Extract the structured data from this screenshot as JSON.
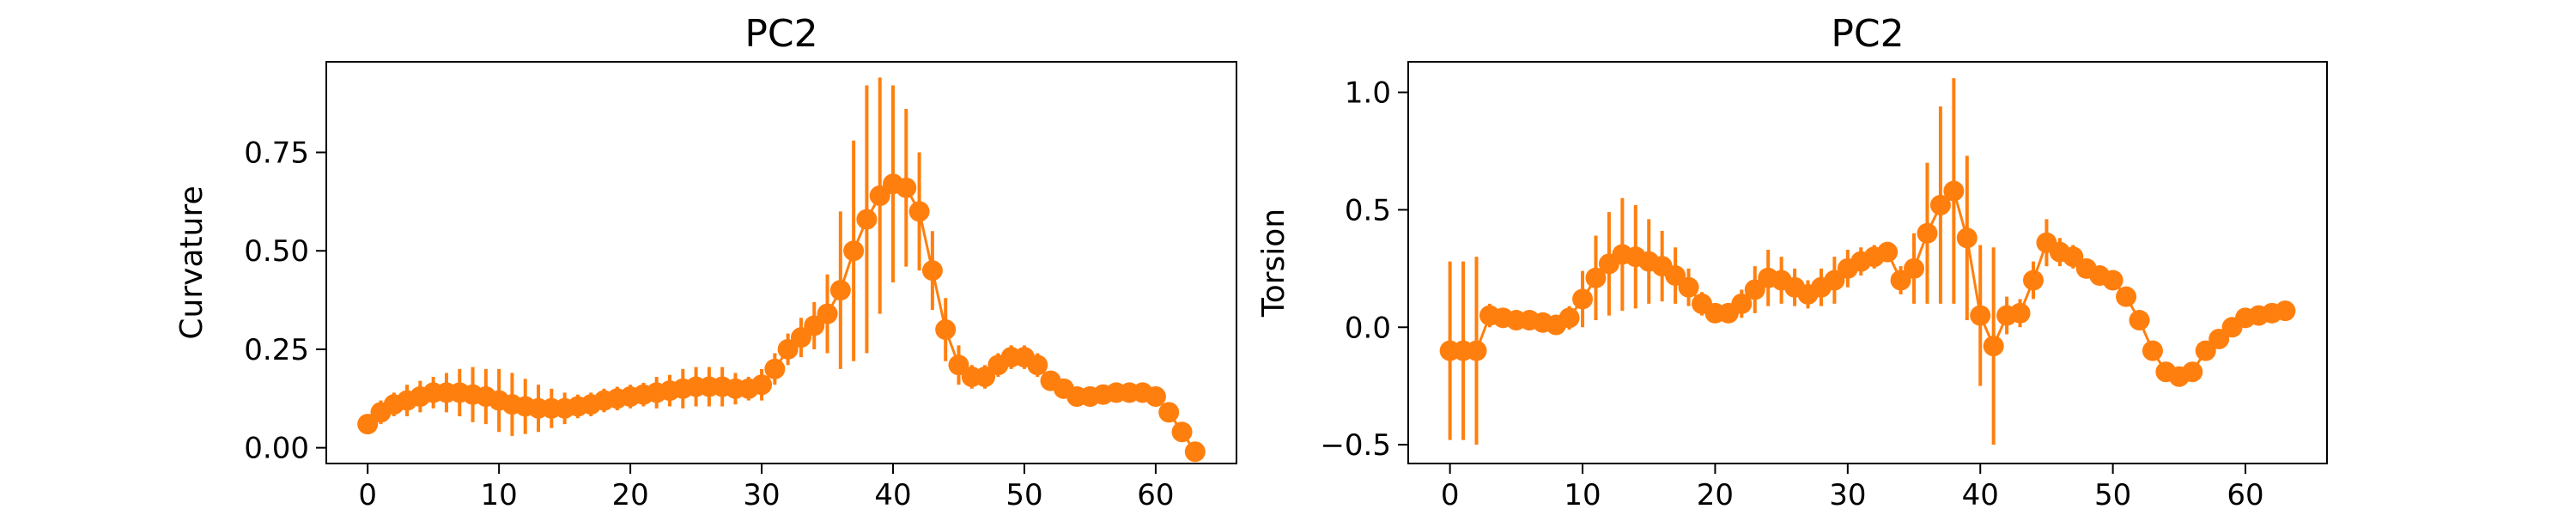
{
  "chart_data": [
    {
      "type": "scatter",
      "title": "PC2",
      "xlabel": "",
      "ylabel": "Curvature",
      "xlim": [
        -3.15,
        66.15
      ],
      "ylim": [
        -0.04,
        0.98
      ],
      "xticks": [
        0,
        10,
        20,
        30,
        40,
        50,
        60
      ],
      "xtick_labels": [
        "0",
        "10",
        "20",
        "30",
        "40",
        "50",
        "60"
      ],
      "yticks": [
        0,
        0.25,
        0.5,
        0.75
      ],
      "ytick_labels": [
        "0.00",
        "0.25",
        "0.50",
        "0.75"
      ],
      "color": "#ff7f0e",
      "grid": false,
      "series": [
        {
          "x": [
            0,
            1,
            2,
            3,
            4,
            5,
            6,
            7,
            8,
            9,
            10,
            11,
            12,
            13,
            14,
            15,
            16,
            17,
            18,
            19,
            20,
            21,
            22,
            23,
            24,
            25,
            26,
            27,
            28,
            29,
            30,
            31,
            32,
            33,
            34,
            35,
            36,
            37,
            38,
            39,
            40,
            41,
            42,
            43,
            44,
            45,
            46,
            47,
            48,
            49,
            50,
            51,
            52,
            53,
            54,
            55,
            56,
            57,
            58,
            59,
            60,
            61,
            62,
            63
          ],
          "y": [
            0.06,
            0.09,
            0.11,
            0.12,
            0.13,
            0.14,
            0.14,
            0.14,
            0.135,
            0.13,
            0.12,
            0.11,
            0.105,
            0.1,
            0.1,
            0.1,
            0.105,
            0.11,
            0.12,
            0.125,
            0.13,
            0.135,
            0.14,
            0.145,
            0.15,
            0.155,
            0.155,
            0.155,
            0.15,
            0.15,
            0.16,
            0.2,
            0.25,
            0.28,
            0.31,
            0.34,
            0.4,
            0.5,
            0.58,
            0.64,
            0.67,
            0.66,
            0.6,
            0.45,
            0.3,
            0.21,
            0.18,
            0.18,
            0.21,
            0.23,
            0.23,
            0.21,
            0.17,
            0.15,
            0.13,
            0.13,
            0.135,
            0.14,
            0.14,
            0.14,
            0.13,
            0.09,
            0.04,
            -0.01
          ],
          "yerr": [
            0.02,
            0.03,
            0.03,
            0.04,
            0.04,
            0.04,
            0.05,
            0.06,
            0.07,
            0.07,
            0.08,
            0.08,
            0.07,
            0.06,
            0.05,
            0.04,
            0.03,
            0.03,
            0.03,
            0.03,
            0.03,
            0.03,
            0.04,
            0.04,
            0.05,
            0.05,
            0.05,
            0.05,
            0.04,
            0.03,
            0.04,
            0.04,
            0.04,
            0.05,
            0.06,
            0.1,
            0.2,
            0.28,
            0.34,
            0.3,
            0.25,
            0.2,
            0.15,
            0.1,
            0.08,
            0.05,
            0.03,
            0.03,
            0.03,
            0.03,
            0.03,
            0.03,
            0.02,
            0.02,
            0.02,
            0.02,
            0.02,
            0.02,
            0.02,
            0.02,
            0.02,
            0.02,
            0.02,
            0.02
          ]
        }
      ]
    },
    {
      "type": "scatter",
      "title": "PC2",
      "xlabel": "",
      "ylabel": "Torsion",
      "xlim": [
        -3.15,
        66.15
      ],
      "ylim": [
        -0.58,
        1.13
      ],
      "xticks": [
        0,
        10,
        20,
        30,
        40,
        50,
        60
      ],
      "xtick_labels": [
        "0",
        "10",
        "20",
        "30",
        "40",
        "50",
        "60"
      ],
      "yticks": [
        -0.5,
        0,
        0.5,
        1.0
      ],
      "ytick_labels": [
        "−0.5",
        "0.0",
        "0.5",
        "1.0"
      ],
      "color": "#ff7f0e",
      "grid": false,
      "series": [
        {
          "x": [
            0,
            1,
            2,
            3,
            4,
            5,
            6,
            7,
            8,
            9,
            10,
            11,
            12,
            13,
            14,
            15,
            16,
            17,
            18,
            19,
            20,
            21,
            22,
            23,
            24,
            25,
            26,
            27,
            28,
            29,
            30,
            31,
            32,
            33,
            34,
            35,
            36,
            37,
            38,
            39,
            40,
            41,
            42,
            43,
            44,
            45,
            46,
            47,
            48,
            49,
            50,
            51,
            52,
            53,
            54,
            55,
            56,
            57,
            58,
            59,
            60,
            61,
            62,
            63
          ],
          "y": [
            -0.1,
            -0.1,
            -0.1,
            0.05,
            0.04,
            0.03,
            0.03,
            0.02,
            0.01,
            0.04,
            0.12,
            0.21,
            0.27,
            0.31,
            0.3,
            0.28,
            0.26,
            0.22,
            0.17,
            0.1,
            0.06,
            0.06,
            0.1,
            0.16,
            0.21,
            0.2,
            0.17,
            0.14,
            0.17,
            0.2,
            0.25,
            0.28,
            0.3,
            0.32,
            0.2,
            0.25,
            0.4,
            0.52,
            0.58,
            0.38,
            0.05,
            -0.08,
            0.05,
            0.06,
            0.2,
            0.36,
            0.32,
            0.3,
            0.25,
            0.22,
            0.2,
            0.13,
            0.03,
            -0.1,
            -0.19,
            -0.21,
            -0.19,
            -0.1,
            -0.05,
            0.0,
            0.04,
            0.05,
            0.06,
            0.07
          ],
          "yerr": [
            0.38,
            0.38,
            0.4,
            0.05,
            0.04,
            0.03,
            0.03,
            0.02,
            0.02,
            0.05,
            0.12,
            0.18,
            0.22,
            0.24,
            0.22,
            0.18,
            0.15,
            0.12,
            0.08,
            0.05,
            0.03,
            0.03,
            0.06,
            0.1,
            0.12,
            0.1,
            0.08,
            0.06,
            0.08,
            0.1,
            0.08,
            0.06,
            0.05,
            0.04,
            0.06,
            0.15,
            0.3,
            0.42,
            0.48,
            0.35,
            0.3,
            0.42,
            0.08,
            0.06,
            0.08,
            0.1,
            0.06,
            0.05,
            0.04,
            0.04,
            0.03,
            0.03,
            0.03,
            0.03,
            0.03,
            0.03,
            0.03,
            0.03,
            0.02,
            0.02,
            0.02,
            0.02,
            0.02,
            0.02
          ]
        }
      ]
    }
  ]
}
